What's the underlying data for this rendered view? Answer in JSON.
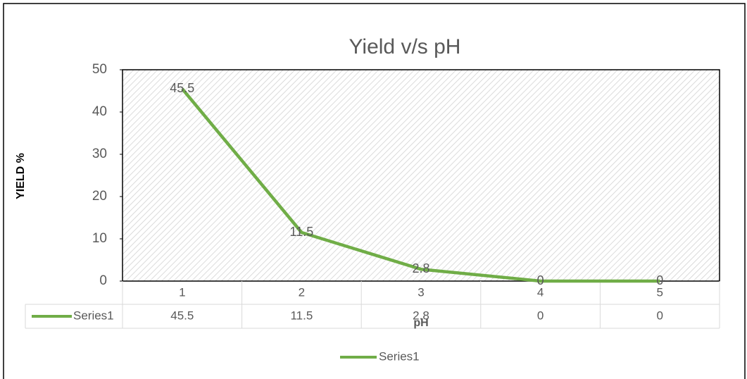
{
  "chart_data": {
    "type": "line",
    "title": "Yield v/s pH",
    "xlabel": "pH",
    "ylabel": "YIELD %",
    "categories": [
      "1",
      "2",
      "3",
      "4",
      "5"
    ],
    "series": [
      {
        "name": "Series1",
        "color": "#70ad47",
        "values": [
          45.5,
          11.5,
          2.8,
          0,
          0
        ]
      }
    ],
    "ylim": [
      0,
      50
    ],
    "yticks": [
      0,
      10,
      20,
      30,
      40,
      50
    ],
    "data_table": true,
    "legend": "bottom"
  }
}
